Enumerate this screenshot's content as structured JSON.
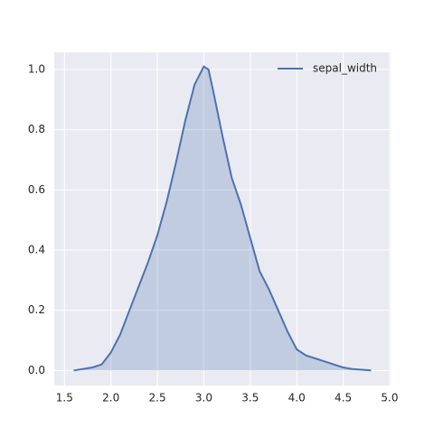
{
  "chart_data": {
    "type": "kde",
    "x": [
      1.6,
      1.8,
      1.9,
      2.0,
      2.1,
      2.2,
      2.3,
      2.4,
      2.5,
      2.6,
      2.7,
      2.8,
      2.9,
      3.0,
      3.05,
      3.1,
      3.2,
      3.3,
      3.4,
      3.5,
      3.6,
      3.7,
      3.8,
      3.9,
      4.0,
      4.1,
      4.2,
      4.3,
      4.4,
      4.5,
      4.6,
      4.8
    ],
    "series": [
      {
        "name": "sepal_width",
        "color": "#4c72b0",
        "values": [
          0.0,
          0.01,
          0.02,
          0.06,
          0.12,
          0.2,
          0.28,
          0.36,
          0.45,
          0.56,
          0.69,
          0.83,
          0.95,
          1.01,
          1.0,
          0.93,
          0.78,
          0.64,
          0.55,
          0.44,
          0.33,
          0.27,
          0.2,
          0.13,
          0.07,
          0.05,
          0.04,
          0.03,
          0.02,
          0.01,
          0.005,
          0.0
        ]
      }
    ],
    "xlim": [
      1.39,
      5.01
    ],
    "ylim": [
      -0.05,
      1.057
    ],
    "xticks": [
      1.5,
      {
        "value": 2,
        "label": "2.0"
      },
      2.5,
      {
        "value": 3,
        "label": "3.0"
      },
      3.5,
      {
        "value": 4,
        "label": "4.0"
      },
      4.5,
      {
        "value": 5,
        "label": "5.0"
      }
    ],
    "yticks": [
      {
        "value": 0,
        "label": "0.0"
      },
      0.2,
      0.4,
      0.6,
      0.8,
      {
        "value": 1,
        "label": "1.0"
      }
    ],
    "grid": true,
    "legend": "upper right",
    "fill": true
  }
}
